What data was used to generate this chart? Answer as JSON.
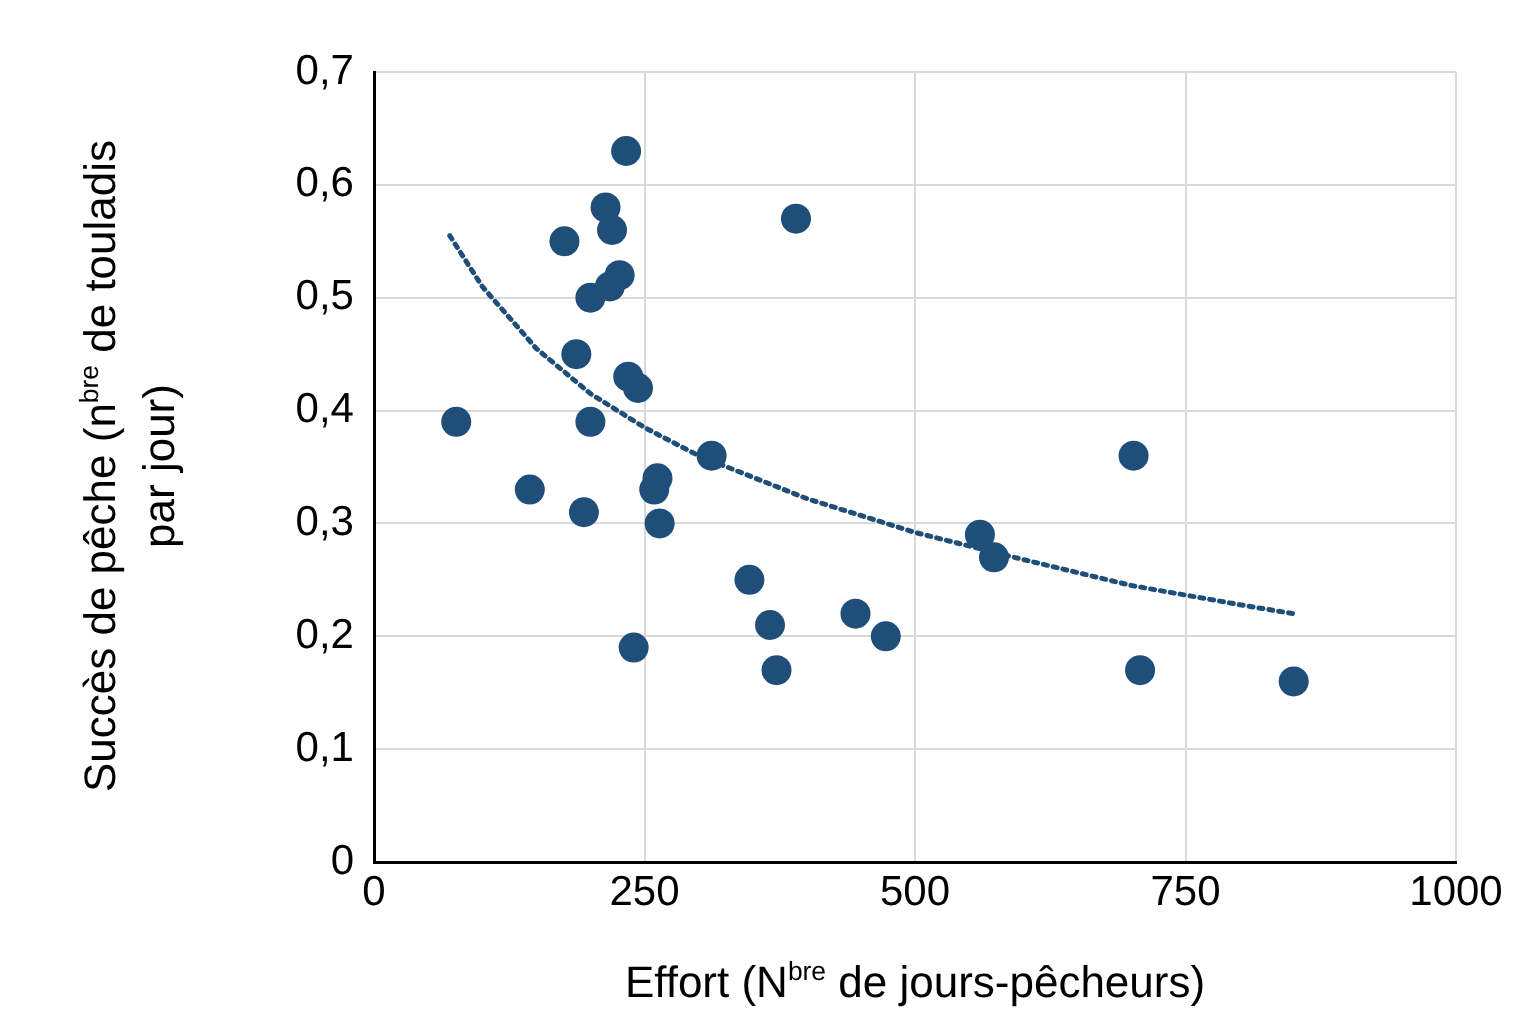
{
  "chart_data": {
    "type": "scatter",
    "xlabel": "Effort (N$^{bre}$ de jours-pêcheurs)",
    "ylabel": "Succès de pêche (n$^{bre}$ de touladis par jour)",
    "xlim": [
      0,
      1000
    ],
    "xticks": [
      0,
      250,
      500,
      750,
      1000
    ],
    "ylim": [
      0,
      0.7
    ],
    "yticks": [
      {
        "value": 0,
        "label": "0"
      },
      {
        "value": 0.1,
        "label": "0,1"
      },
      {
        "value": 0.2,
        "label": "0,2"
      },
      {
        "value": 0.3,
        "label": "0,3"
      },
      {
        "value": 0.4,
        "label": "0,4"
      },
      {
        "value": 0.5,
        "label": "0,5"
      },
      {
        "value": 0.6,
        "label": "0,6"
      },
      {
        "value": 0.7,
        "label": "0,7"
      }
    ],
    "grid": true,
    "legend": false,
    "marker": "circle",
    "series": [
      {
        "type": "scatter",
        "color": "#1f4e79",
        "x": [
          76,
          144,
          176,
          187,
          194,
          200,
          200,
          214,
          218,
          220,
          227,
          233,
          235,
          244,
          240,
          259,
          262,
          264,
          312,
          347,
          366,
          372,
          390,
          445,
          473,
          560,
          573,
          702,
          708,
          850
        ],
        "values": [
          0.39,
          0.33,
          0.55,
          0.45,
          0.31,
          0.5,
          0.39,
          0.58,
          0.51,
          0.56,
          0.52,
          0.63,
          0.43,
          0.42,
          0.19,
          0.33,
          0.34,
          0.3,
          0.36,
          0.25,
          0.21,
          0.17,
          0.57,
          0.22,
          0.2,
          0.29,
          0.27,
          0.36,
          0.17,
          0.16
        ]
      },
      {
        "type": "line",
        "color": "#1f4e79",
        "marker": "none",
        "line_style": "dotted",
        "x": [
          70,
          100,
          150,
          200,
          250,
          300,
          400,
          500,
          600,
          700,
          800,
          850
        ],
        "values": [
          0.555,
          0.51,
          0.455,
          0.415,
          0.385,
          0.36,
          0.322,
          0.292,
          0.268,
          0.245,
          0.228,
          0.22
        ]
      }
    ]
  }
}
